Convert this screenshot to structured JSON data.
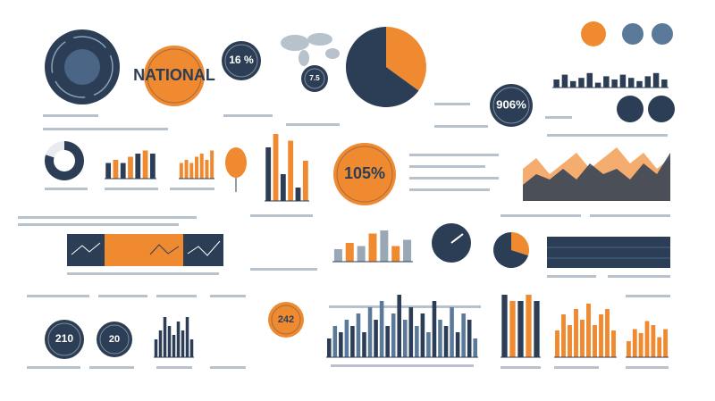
{
  "badges": [
    {
      "label": "16 %",
      "bg": "#2c3e55",
      "fg": "#ffffff"
    },
    {
      "label": "NATIONAL",
      "bg": "#f08a30",
      "fg": "#2c3e55"
    },
    {
      "label": "7.5",
      "bg": "#2c3e55",
      "fg": "#ffffff"
    },
    {
      "label": "906%",
      "bg": "#2c3e55",
      "fg": "#ffffff"
    },
    {
      "label": "105%",
      "bg": "#f08a30",
      "fg": "#2c3e55"
    },
    {
      "label": "210",
      "bg": "#2c3e55",
      "fg": "#ffffff"
    },
    {
      "label": "20",
      "bg": "#2c3e55",
      "fg": "#ffffff"
    },
    {
      "label": "242",
      "bg": "#f08a30",
      "fg": "#2c3e55"
    }
  ],
  "pies": [
    {
      "values": [
        35,
        65
      ],
      "colors": [
        "#f08a30",
        "#2c3e55"
      ]
    },
    {
      "values": [
        80,
        20
      ],
      "colors": [
        "#2c3e55",
        "#e8ecf0"
      ]
    },
    {
      "values": [
        30,
        70
      ],
      "colors": [
        "#f08a30",
        "#2c3e55"
      ]
    }
  ],
  "bar_charts": [
    {
      "ylim": [
        0,
        10
      ],
      "colors": [
        "#2c3e55",
        "#f08a30"
      ],
      "values": [
        5,
        6,
        5,
        7,
        8,
        9,
        8
      ]
    },
    {
      "ylim": [
        0,
        10
      ],
      "colors": [
        "#f08a30"
      ],
      "values": [
        5,
        6,
        5,
        7,
        8,
        6,
        9
      ]
    },
    {
      "ylim": [
        0,
        10
      ],
      "colors": [
        "#2c3e55",
        "#f08a30"
      ],
      "values": [
        8,
        10,
        4,
        9,
        2,
        6
      ]
    },
    {
      "ylim": [
        0,
        10
      ],
      "colors": [
        "#2c3e55"
      ],
      "values": [
        4,
        6,
        9,
        7,
        5,
        8,
        6,
        9,
        4
      ]
    },
    {
      "ylim": [
        0,
        10
      ],
      "colors": [
        "#2c3e55",
        "#5b7a9a"
      ],
      "values": [
        3,
        5,
        4,
        6,
        5,
        7,
        4,
        8,
        6,
        9,
        5,
        7,
        10,
        6,
        8,
        5,
        7,
        4,
        9,
        6,
        5,
        8,
        4,
        7,
        6,
        3
      ]
    },
    {
      "ylim": [
        0,
        10
      ],
      "colors": [
        "#2c3e55",
        "#f08a30"
      ],
      "values": [
        10,
        9,
        9,
        10,
        9
      ]
    },
    {
      "ylim": [
        0,
        10
      ],
      "colors": [
        "#f08a30"
      ],
      "values": [
        5,
        8,
        6,
        9,
        7,
        10,
        6,
        8,
        9,
        5
      ]
    },
    {
      "ylim": [
        0,
        10
      ],
      "colors": [
        "#f08a30"
      ],
      "values": [
        4,
        7,
        6,
        9,
        8,
        5,
        7
      ]
    },
    {
      "ylim": [
        0,
        10
      ],
      "colors": [
        "#9aa7b5",
        "#f08a30"
      ],
      "values": [
        4,
        6,
        5,
        9,
        10,
        5,
        7
      ]
    },
    {
      "ylim": [
        0,
        10
      ],
      "colors": [
        "#2c3e55"
      ],
      "values": [
        5,
        8,
        4,
        6,
        9,
        3,
        7,
        5,
        8,
        6,
        4,
        7,
        9,
        5
      ]
    }
  ],
  "area_charts": [
    {
      "ylim": [
        0,
        10
      ],
      "series": [
        {
          "color": "#f08a30",
          "values": [
            6,
            8,
            5,
            7,
            9,
            6,
            8,
            10,
            7,
            9,
            6,
            8
          ]
        },
        {
          "color": "#2c3e55",
          "values": [
            3,
            5,
            4,
            6,
            4,
            7,
            5,
            6,
            4,
            7,
            5,
            9
          ]
        }
      ]
    }
  ]
}
